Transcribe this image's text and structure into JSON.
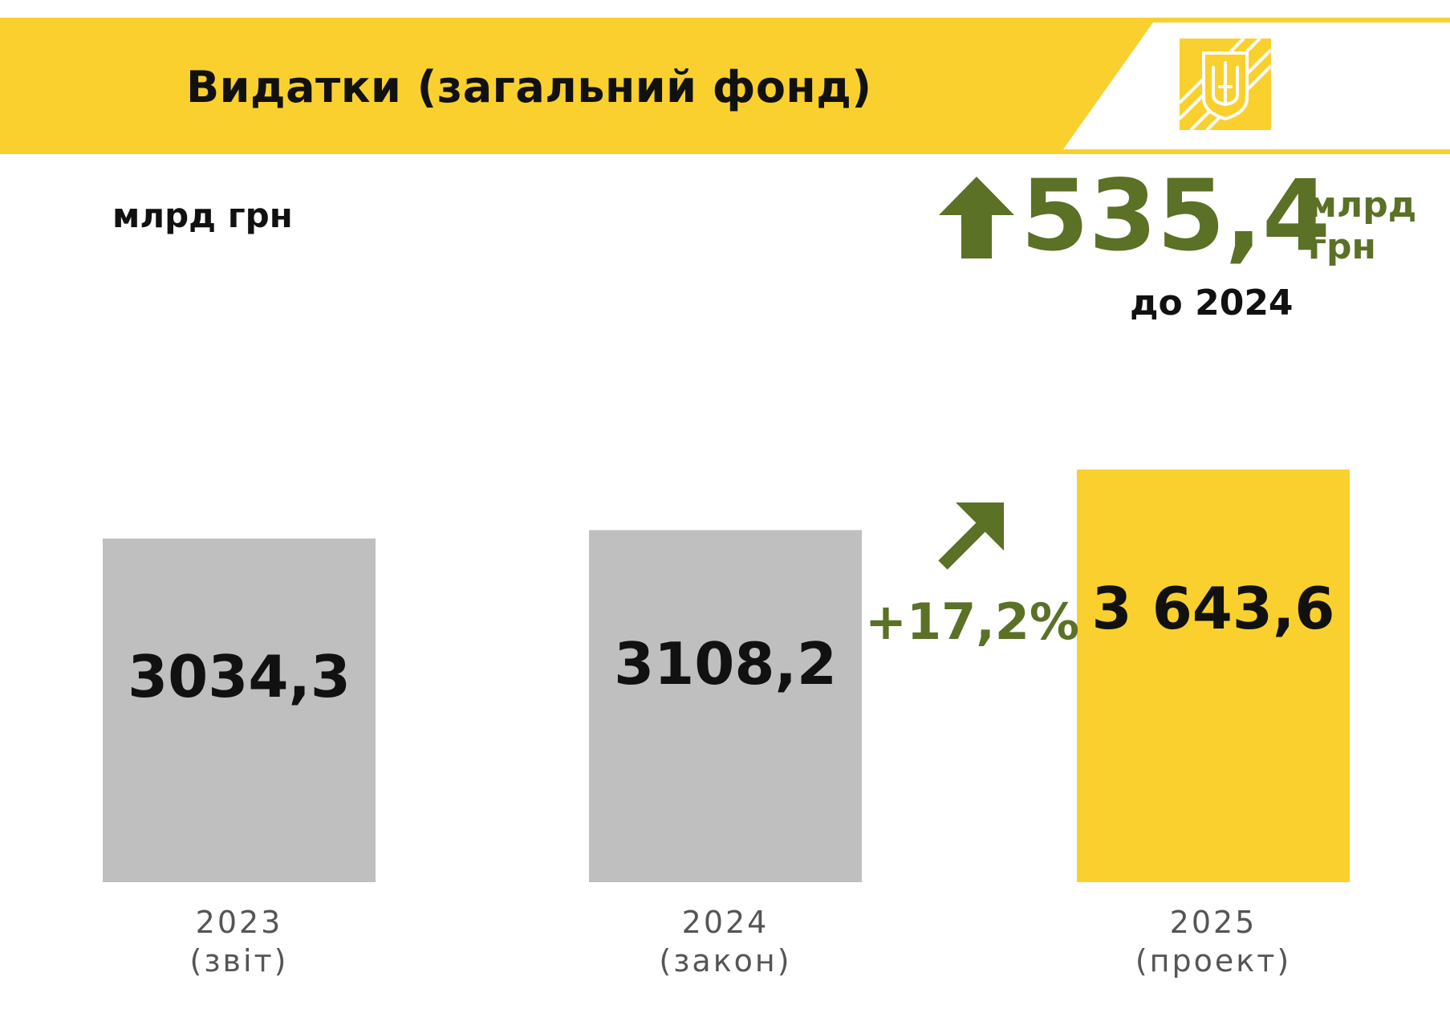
{
  "header": {
    "title": "Видатки (загальний фонд)"
  },
  "unit_label": "млрд грн",
  "colors": {
    "brand_yellow": "#f9d02e",
    "bar_gray": "#bfbfbf",
    "accent_green": "#5a7126",
    "text_dark": "#111111"
  },
  "icons": {
    "emblem": "trident-emblem-icon",
    "up_arrow": "arrow-up-icon",
    "diagonal_arrow": "arrow-up-right-icon"
  },
  "annotations": {
    "growth_percent": "+17,2%",
    "delta_value": "535,4",
    "delta_unit_line1": "млрд",
    "delta_unit_line2": "грн",
    "delta_reference": "до 2024"
  },
  "chart_data": {
    "type": "bar",
    "title": "Видатки (загальний фонд)",
    "ylabel": "млрд грн",
    "categories": [
      "2023",
      "2024",
      "2025"
    ],
    "category_sublabels": [
      "(звіт)",
      "(закон)",
      "(проект)"
    ],
    "values": [
      3034.3,
      3108.2,
      3643.6
    ],
    "value_labels": [
      "3034,3",
      "3108,2",
      "3 643,6"
    ],
    "bar_colors": [
      "#bfbfbf",
      "#bfbfbf",
      "#f9d02e"
    ],
    "grid": false,
    "legend": "none"
  }
}
